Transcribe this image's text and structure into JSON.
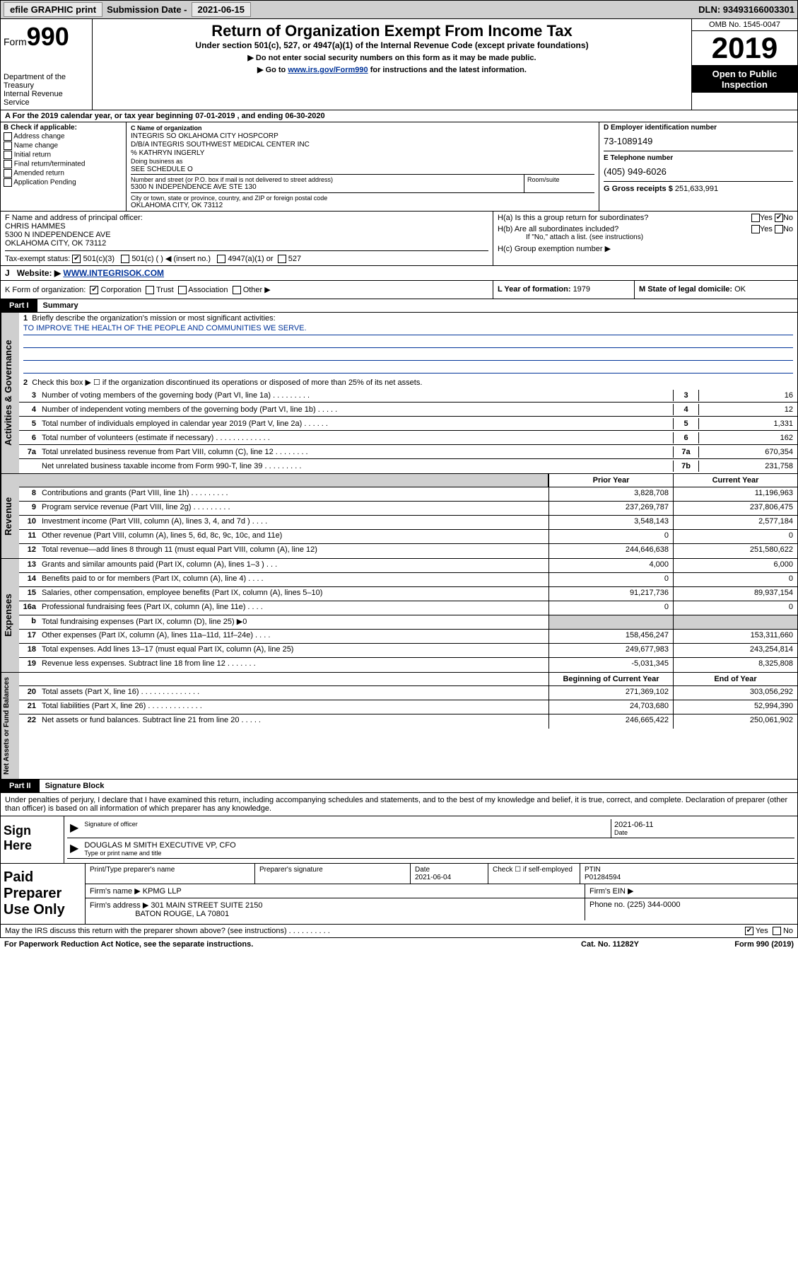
{
  "topbar": {
    "efile": "efile GRAPHIC print",
    "sublabel": "Submission Date - ",
    "subdate": "2021-06-15",
    "dln": "DLN: 93493166003301"
  },
  "header": {
    "form": "Form",
    "num": "990",
    "title": "Return of Organization Exempt From Income Tax",
    "sub": "Under section 501(c), 527, or 4947(a)(1) of the Internal Revenue Code (except private foundations)",
    "note1": "▶ Do not enter social security numbers on this form as it may be made public.",
    "note2_pre": "▶ Go to ",
    "note2_link": "www.irs.gov/Form990",
    "note2_post": " for instructions and the latest information.",
    "dept": "Department of the Treasury\nInternal Revenue Service",
    "omb": "OMB No. 1545-0047",
    "year": "2019",
    "open": "Open to Public Inspection"
  },
  "rowA": "A For the 2019 calendar year, or tax year beginning 07-01-2019   , and ending 06-30-2020",
  "colB": {
    "hdr": "B Check if applicable:",
    "items": [
      "Address change",
      "Name change",
      "Initial return",
      "Final return/terminated",
      "Amended return",
      "Application Pending"
    ]
  },
  "colC": {
    "c_hdr": "C Name of organization",
    "name1": "INTEGRIS SO OKLAHOMA CITY HOSPCORP",
    "name2": "D/B/A INTEGRIS SOUTHWEST MEDICAL CENTER INC",
    "name3": "% KATHRYN INGERLY",
    "dba_hdr": "Doing business as",
    "dba": "SEE SCHEDULE O",
    "addr_hdr": "Number and street (or P.O. box if mail is not delivered to street address)",
    "room": "Room/suite",
    "addr": "5300 N INDEPENDENCE AVE STE 130",
    "city_hdr": "City or town, state or province, country, and ZIP or foreign postal code",
    "city": "OKLAHOMA CITY, OK  73112"
  },
  "colD": {
    "d_hdr": "D Employer identification number",
    "ein": "73-1089149",
    "e_hdr": "E Telephone number",
    "tel": "(405) 949-6026",
    "g_hdr": "G Gross receipts $ ",
    "g_val": "251,633,991"
  },
  "colF": {
    "hdr": "F  Name and address of principal officer:",
    "name": "CHRIS HAMMES",
    "addr1": "5300 N INDEPENDENCE AVE",
    "addr2": "OKLAHOMA CITY, OK  73112",
    "tax": "Tax-exempt status:",
    "s1": "501(c)(3)",
    "s2": "501(c) (  ) ◀ (insert no.)",
    "s3": "4947(a)(1) or",
    "s4": "527"
  },
  "colH": {
    "ha": "H(a)  Is this a group return for subordinates?",
    "yes": "Yes",
    "no": "No",
    "hb": "H(b)  Are all subordinates included?",
    "hb2": "If \"No,\" attach a list. (see instructions)",
    "hc": "H(c)  Group exemption number ▶"
  },
  "rowJ": {
    "label": "J",
    "txt": "Website: ▶  ",
    "url": "WWW.INTEGRISOK.COM"
  },
  "rowK": {
    "k": "K Form of organization:",
    "corp": "Corporation",
    "trust": "Trust",
    "assoc": "Association",
    "other": "Other ▶",
    "l": "L Year of formation: ",
    "lval": "1979",
    "m": "M State of legal domicile: ",
    "mval": "OK"
  },
  "part1": {
    "label": "Part I",
    "title": "Summary"
  },
  "gov": {
    "tab": "Activities & Governance",
    "q1_num": "1",
    "q1": "Briefly describe the organization's mission or most significant activities:",
    "q1_ans": "TO IMPROVE THE HEALTH OF THE PEOPLE AND COMMUNITIES WE SERVE.",
    "q2_num": "2",
    "q2": "Check this box ▶ ☐  if the organization discontinued its operations or disposed of more than 25% of its net assets.",
    "rows": [
      {
        "n": "3",
        "t": "Number of voting members of the governing body (Part VI, line 1a)  .    .    .    .    .    .    .    .    .",
        "c": "3",
        "v": "16"
      },
      {
        "n": "4",
        "t": "Number of independent voting members of the governing body (Part VI, line 1b)  .    .    .    .    .",
        "c": "4",
        "v": "12"
      },
      {
        "n": "5",
        "t": "Total number of individuals employed in calendar year 2019 (Part V, line 2a)  .    .    .    .    .    .",
        "c": "5",
        "v": "1,331"
      },
      {
        "n": "6",
        "t": "Total number of volunteers (estimate if necessary)  .    .    .    .    .    .    .    .    .    .    .    .    .",
        "c": "6",
        "v": "162"
      },
      {
        "n": "7a",
        "t": "Total unrelated business revenue from Part VIII, column (C), line 12  .    .    .    .    .    .    .    .",
        "c": "7a",
        "v": "670,354"
      },
      {
        "n": "",
        "t": "Net unrelated business taxable income from Form 990-T, line 39  .    .    .    .    .    .    .    .    .",
        "c": "7b",
        "v": "231,758"
      }
    ]
  },
  "rev": {
    "tab": "Revenue",
    "prior": "Prior Year",
    "current": "Current Year",
    "rows": [
      {
        "n": "8",
        "t": "Contributions and grants (Part VIII, line 1h)  .    .    .    .    .    .    .    .    .",
        "p": "3,828,708",
        "c": "11,196,963"
      },
      {
        "n": "9",
        "t": "Program service revenue (Part VIII, line 2g)  .    .    .    .    .    .    .    .    .",
        "p": "237,269,787",
        "c": "237,806,475"
      },
      {
        "n": "10",
        "t": "Investment income (Part VIII, column (A), lines 3, 4, and 7d )  .    .    .    .",
        "p": "3,548,143",
        "c": "2,577,184"
      },
      {
        "n": "11",
        "t": "Other revenue (Part VIII, column (A), lines 5, 6d, 8c, 9c, 10c, and 11e)",
        "p": "0",
        "c": "0"
      },
      {
        "n": "12",
        "t": "Total revenue—add lines 8 through 11 (must equal Part VIII, column (A), line 12)",
        "p": "244,646,638",
        "c": "251,580,622"
      }
    ]
  },
  "exp": {
    "tab": "Expenses",
    "rows": [
      {
        "n": "13",
        "t": "Grants and similar amounts paid (Part IX, column (A), lines 1–3 )  .    .    .",
        "p": "4,000",
        "c": "6,000"
      },
      {
        "n": "14",
        "t": "Benefits paid to or for members (Part IX, column (A), line 4)  .    .    .    .",
        "p": "0",
        "c": "0"
      },
      {
        "n": "15",
        "t": "Salaries, other compensation, employee benefits (Part IX, column (A), lines 5–10)",
        "p": "91,217,736",
        "c": "89,937,154"
      },
      {
        "n": "16a",
        "t": "Professional fundraising fees (Part IX, column (A), line 11e)  .    .    .    .",
        "p": "0",
        "c": "0"
      },
      {
        "n": "b",
        "t": "Total fundraising expenses (Part IX, column (D), line 25) ▶0",
        "p": "",
        "c": ""
      },
      {
        "n": "17",
        "t": "Other expenses (Part IX, column (A), lines 11a–11d, 11f–24e)  .    .    .    .",
        "p": "158,456,247",
        "c": "153,311,660"
      },
      {
        "n": "18",
        "t": "Total expenses. Add lines 13–17 (must equal Part IX, column (A), line 25)",
        "p": "249,677,983",
        "c": "243,254,814"
      },
      {
        "n": "19",
        "t": "Revenue less expenses. Subtract line 18 from line 12  .    .    .    .    .    .    .",
        "p": "-5,031,345",
        "c": "8,325,808"
      }
    ]
  },
  "net": {
    "tab": "Net Assets or Fund Balances",
    "begin": "Beginning of Current Year",
    "end": "End of Year",
    "rows": [
      {
        "n": "20",
        "t": "Total assets (Part X, line 16)  .    .    .    .    .    .    .    .    .    .    .    .    .    .",
        "p": "271,369,102",
        "c": "303,056,292"
      },
      {
        "n": "21",
        "t": "Total liabilities (Part X, line 26)  .    .    .    .    .    .    .    .    .    .    .    .    .",
        "p": "24,703,680",
        "c": "52,994,390"
      },
      {
        "n": "22",
        "t": "Net assets or fund balances. Subtract line 21 from line 20  .    .    .    .    .",
        "p": "246,665,422",
        "c": "250,061,902"
      }
    ]
  },
  "part2": {
    "label": "Part II",
    "title": "Signature Block"
  },
  "sig": {
    "txt": "Under penalties of perjury, I declare that I have examined this return, including accompanying schedules and statements, and to the best of my knowledge and belief, it is true, correct, and complete. Declaration of preparer (other than officer) is based on all information of which preparer has any knowledge.",
    "sign_here": "Sign Here",
    "sig_officer": "Signature of officer",
    "date_hdr": "Date",
    "date": "2021-06-11",
    "name": "DOUGLAS M SMITH  EXECUTIVE VP, CFO",
    "name_hdr": "Type or print name and title"
  },
  "prep": {
    "label": "Paid Preparer Use Only",
    "r1": {
      "c1": "Print/Type preparer's name",
      "c2": "Preparer's signature",
      "c3": "Date",
      "c3v": "2021-06-04",
      "c4": "Check ☐ if self-employed",
      "c5": "PTIN",
      "c5v": "P01284594"
    },
    "r2": {
      "c1": "Firm's name   ▶  ",
      "c1v": "KPMG LLP",
      "c2": "Firm's EIN ▶"
    },
    "r3": {
      "c1": "Firm's address ▶ ",
      "c1v": "301 MAIN STREET SUITE 2150",
      "c2": "Phone no. ",
      "c2v": "(225) 344-0000"
    },
    "r4": "BATON ROUGE, LA  70801"
  },
  "footer": {
    "q": "May the IRS discuss this return with the preparer shown above? (see instructions)  .    .    .    .    .    .    .    .    .    .",
    "yes": "Yes",
    "no": "No",
    "note": "For Paperwork Reduction Act Notice, see the separate instructions.",
    "cat": "Cat. No. 11282Y",
    "form": "Form 990 (2019)"
  }
}
